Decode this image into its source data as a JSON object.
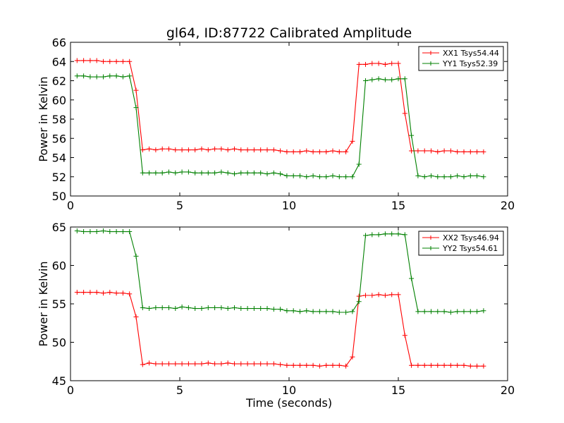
{
  "chart_data": [
    {
      "type": "line",
      "title": "gl64, ID:87722 Calibrated Amplitude",
      "xlabel": "",
      "ylabel": "Power in Kelvin",
      "xlim": [
        0,
        20
      ],
      "ylim": [
        50,
        66
      ],
      "xticks": [
        "0",
        "5",
        "10",
        "15",
        "20"
      ],
      "yticks": [
        "50",
        "52",
        "54",
        "56",
        "58",
        "60",
        "62",
        "64",
        "66"
      ],
      "grid": false,
      "legend_position": "top-right",
      "x": [
        0.3,
        0.6,
        0.9,
        1.2,
        1.5,
        1.8,
        2.1,
        2.4,
        2.7,
        3.0,
        3.3,
        3.6,
        3.9,
        4.2,
        4.5,
        4.8,
        5.1,
        5.4,
        5.7,
        6.0,
        6.3,
        6.6,
        6.9,
        7.2,
        7.5,
        7.8,
        8.1,
        8.4,
        8.7,
        9.0,
        9.3,
        9.6,
        9.9,
        10.2,
        10.5,
        10.8,
        11.1,
        11.4,
        11.7,
        12.0,
        12.3,
        12.6,
        12.9,
        13.2,
        13.5,
        13.8,
        14.1,
        14.4,
        14.7,
        15.0,
        15.3,
        15.6,
        15.9,
        16.2,
        16.5,
        16.8,
        17.1,
        17.4,
        17.7,
        18.0,
        18.3,
        18.6,
        18.9
      ],
      "series": [
        {
          "name": "XX1 Tsys54.44",
          "color": "#ff0000",
          "values": [
            64.1,
            64.1,
            64.1,
            64.1,
            64.0,
            64.0,
            64.0,
            64.0,
            64.0,
            61.0,
            54.8,
            54.9,
            54.8,
            54.9,
            54.9,
            54.8,
            54.8,
            54.8,
            54.8,
            54.9,
            54.8,
            54.9,
            54.9,
            54.8,
            54.9,
            54.8,
            54.8,
            54.8,
            54.8,
            54.8,
            54.8,
            54.7,
            54.6,
            54.6,
            54.6,
            54.7,
            54.6,
            54.6,
            54.6,
            54.7,
            54.6,
            54.6,
            55.7,
            63.7,
            63.7,
            63.8,
            63.8,
            63.7,
            63.8,
            63.8,
            58.6,
            54.7,
            54.7,
            54.7,
            54.7,
            54.6,
            54.7,
            54.7,
            54.6,
            54.6,
            54.6,
            54.6,
            54.6
          ]
        },
        {
          "name": "YY1 Tsys52.39",
          "color": "#008000",
          "values": [
            62.5,
            62.5,
            62.4,
            62.4,
            62.4,
            62.5,
            62.5,
            62.4,
            62.5,
            59.2,
            52.4,
            52.4,
            52.4,
            52.4,
            52.5,
            52.4,
            52.5,
            52.5,
            52.4,
            52.4,
            52.4,
            52.4,
            52.5,
            52.4,
            52.3,
            52.4,
            52.4,
            52.4,
            52.4,
            52.3,
            52.4,
            52.3,
            52.1,
            52.1,
            52.1,
            52.0,
            52.1,
            52.0,
            52.0,
            52.1,
            52.0,
            52.0,
            52.0,
            53.3,
            62.0,
            62.1,
            62.2,
            62.1,
            62.1,
            62.2,
            62.2,
            56.3,
            52.1,
            52.0,
            52.1,
            52.0,
            52.0,
            52.0,
            52.1,
            52.0,
            52.1,
            52.1,
            52.0
          ]
        }
      ]
    },
    {
      "type": "line",
      "title": "",
      "xlabel": "Time (seconds)",
      "ylabel": "Power in Kelvin",
      "xlim": [
        0,
        20
      ],
      "ylim": [
        45,
        65
      ],
      "xticks": [
        "0",
        "5",
        "10",
        "15",
        "20"
      ],
      "yticks": [
        "45",
        "50",
        "55",
        "60",
        "65"
      ],
      "grid": false,
      "legend_position": "top-right",
      "x": [
        0.3,
        0.6,
        0.9,
        1.2,
        1.5,
        1.8,
        2.1,
        2.4,
        2.7,
        3.0,
        3.3,
        3.6,
        3.9,
        4.2,
        4.5,
        4.8,
        5.1,
        5.4,
        5.7,
        6.0,
        6.3,
        6.6,
        6.9,
        7.2,
        7.5,
        7.8,
        8.1,
        8.4,
        8.7,
        9.0,
        9.3,
        9.6,
        9.9,
        10.2,
        10.5,
        10.8,
        11.1,
        11.4,
        11.7,
        12.0,
        12.3,
        12.6,
        12.9,
        13.2,
        13.5,
        13.8,
        14.1,
        14.4,
        14.7,
        15.0,
        15.3,
        15.6,
        15.9,
        16.2,
        16.5,
        16.8,
        17.1,
        17.4,
        17.7,
        18.0,
        18.3,
        18.6,
        18.9
      ],
      "series": [
        {
          "name": "XX2 Tsys46.94",
          "color": "#ff0000",
          "values": [
            56.5,
            56.5,
            56.5,
            56.5,
            56.4,
            56.5,
            56.4,
            56.4,
            56.3,
            53.3,
            47.1,
            47.3,
            47.2,
            47.2,
            47.2,
            47.2,
            47.2,
            47.2,
            47.2,
            47.2,
            47.3,
            47.2,
            47.2,
            47.3,
            47.2,
            47.2,
            47.2,
            47.2,
            47.2,
            47.2,
            47.2,
            47.1,
            47.0,
            47.0,
            47.0,
            47.0,
            47.0,
            46.9,
            47.0,
            47.0,
            47.0,
            46.9,
            48.1,
            56.0,
            56.1,
            56.1,
            56.2,
            56.1,
            56.2,
            56.2,
            50.9,
            47.0,
            47.0,
            47.0,
            47.0,
            47.0,
            47.0,
            47.0,
            47.0,
            47.0,
            46.9,
            46.9,
            46.9
          ]
        },
        {
          "name": "YY2 Tsys54.61",
          "color": "#008000",
          "values": [
            64.5,
            64.4,
            64.4,
            64.4,
            64.5,
            64.4,
            64.4,
            64.4,
            64.4,
            61.2,
            54.5,
            54.4,
            54.5,
            54.5,
            54.5,
            54.4,
            54.6,
            54.5,
            54.4,
            54.4,
            54.5,
            54.5,
            54.5,
            54.4,
            54.5,
            54.4,
            54.4,
            54.4,
            54.4,
            54.4,
            54.3,
            54.3,
            54.1,
            54.1,
            54.0,
            54.1,
            54.0,
            54.0,
            54.0,
            54.0,
            53.9,
            53.9,
            54.0,
            55.3,
            63.9,
            64.0,
            64.0,
            64.1,
            64.1,
            64.1,
            64.0,
            58.3,
            54.0,
            54.0,
            54.0,
            54.0,
            54.0,
            53.9,
            54.0,
            54.0,
            54.0,
            54.0,
            54.1
          ]
        }
      ]
    }
  ]
}
